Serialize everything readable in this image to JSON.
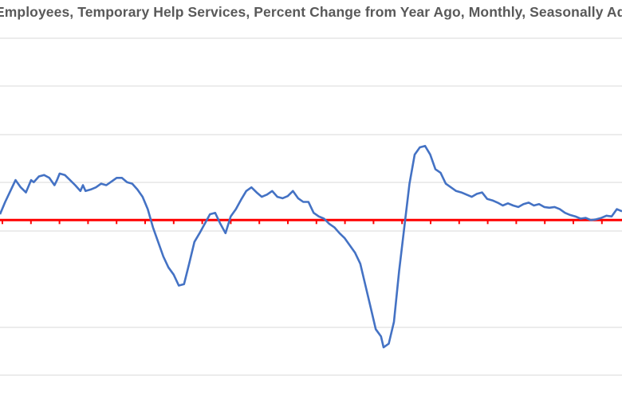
{
  "chart_data": {
    "type": "line",
    "title": "Employees, Temporary Help Services, Percent Change from Year Ago, Monthly, Seasonally Ad",
    "xlabel": "",
    "ylabel": "",
    "x_unit": "month index",
    "ylim": [
      -28,
      25
    ],
    "grid": true,
    "legend": "none",
    "reference_line": {
      "y": 0,
      "color": "#ff0000"
    },
    "series": [
      {
        "color": "#4472c4",
        "points": [
          [
            0,
            0.8
          ],
          [
            2,
            2.5
          ],
          [
            4,
            4.0
          ],
          [
            6,
            5.5
          ],
          [
            8,
            4.5
          ],
          [
            10,
            3.8
          ],
          [
            12,
            5.5
          ],
          [
            13,
            5.2
          ],
          [
            15,
            6.0
          ],
          [
            17,
            6.2
          ],
          [
            19,
            5.8
          ],
          [
            21,
            4.8
          ],
          [
            22,
            5.5
          ],
          [
            23,
            6.4
          ],
          [
            25,
            6.2
          ],
          [
            27,
            5.5
          ],
          [
            29,
            4.8
          ],
          [
            31,
            4.0
          ],
          [
            32,
            4.8
          ],
          [
            33,
            4.0
          ],
          [
            35,
            4.2
          ],
          [
            37,
            4.5
          ],
          [
            39,
            5.0
          ],
          [
            41,
            4.8
          ],
          [
            43,
            5.3
          ],
          [
            45,
            5.8
          ],
          [
            47,
            5.8
          ],
          [
            49,
            5.2
          ],
          [
            51,
            5.0
          ],
          [
            53,
            4.2
          ],
          [
            55,
            3.2
          ],
          [
            57,
            1.5
          ],
          [
            59,
            -1.0
          ],
          [
            61,
            -3.0
          ],
          [
            63,
            -5.0
          ],
          [
            65,
            -6.5
          ],
          [
            67,
            -7.5
          ],
          [
            69,
            -9.0
          ],
          [
            71,
            -8.8
          ],
          [
            73,
            -6.0
          ],
          [
            75,
            -3.0
          ],
          [
            77,
            -1.8
          ],
          [
            79,
            -0.5
          ],
          [
            81,
            0.8
          ],
          [
            83,
            1.0
          ],
          [
            85,
            -0.5
          ],
          [
            87,
            -1.8
          ],
          [
            89,
            0.5
          ],
          [
            91,
            1.5
          ],
          [
            93,
            2.8
          ],
          [
            95,
            4.0
          ],
          [
            97,
            4.5
          ],
          [
            99,
            3.8
          ],
          [
            101,
            3.2
          ],
          [
            103,
            3.5
          ],
          [
            105,
            4.0
          ],
          [
            107,
            3.2
          ],
          [
            109,
            3.0
          ],
          [
            111,
            3.3
          ],
          [
            113,
            4.0
          ],
          [
            115,
            3.0
          ],
          [
            117,
            2.5
          ],
          [
            119,
            2.5
          ],
          [
            121,
            1.0
          ],
          [
            123,
            0.5
          ],
          [
            125,
            0.2
          ],
          [
            127,
            -0.5
          ],
          [
            129,
            -1.0
          ],
          [
            131,
            -1.8
          ],
          [
            133,
            -2.5
          ],
          [
            135,
            -3.5
          ],
          [
            137,
            -4.5
          ],
          [
            139,
            -6.0
          ],
          [
            141,
            -9.0
          ],
          [
            143,
            -12.0
          ],
          [
            145,
            -15.0
          ],
          [
            147,
            -16.0
          ],
          [
            148,
            -17.5
          ],
          [
            150,
            -17.0
          ],
          [
            152,
            -14.0
          ],
          [
            154,
            -7.0
          ],
          [
            156,
            -1.0
          ],
          [
            158,
            5.0
          ],
          [
            160,
            9.0
          ],
          [
            162,
            10.0
          ],
          [
            164,
            10.2
          ],
          [
            166,
            9.0
          ],
          [
            168,
            7.0
          ],
          [
            170,
            6.5
          ],
          [
            172,
            5.0
          ],
          [
            174,
            4.5
          ],
          [
            176,
            4.0
          ],
          [
            178,
            3.8
          ],
          [
            180,
            3.5
          ],
          [
            182,
            3.2
          ],
          [
            184,
            3.6
          ],
          [
            186,
            3.8
          ],
          [
            188,
            2.9
          ],
          [
            190,
            2.7
          ],
          [
            192,
            2.4
          ],
          [
            194,
            2.0
          ],
          [
            196,
            2.3
          ],
          [
            198,
            2.0
          ],
          [
            200,
            1.8
          ],
          [
            202,
            2.2
          ],
          [
            204,
            2.4
          ],
          [
            206,
            2.0
          ],
          [
            208,
            2.2
          ],
          [
            210,
            1.8
          ],
          [
            212,
            1.7
          ],
          [
            214,
            1.8
          ],
          [
            216,
            1.5
          ],
          [
            218,
            1.0
          ],
          [
            220,
            0.7
          ],
          [
            222,
            0.5
          ],
          [
            224,
            0.2
          ],
          [
            226,
            0.3
          ],
          [
            228,
            0.0
          ],
          [
            230,
            0.1
          ],
          [
            232,
            0.3
          ],
          [
            234,
            0.6
          ],
          [
            236,
            0.5
          ],
          [
            238,
            1.5
          ],
          [
            240,
            1.2
          ]
        ]
      }
    ]
  }
}
